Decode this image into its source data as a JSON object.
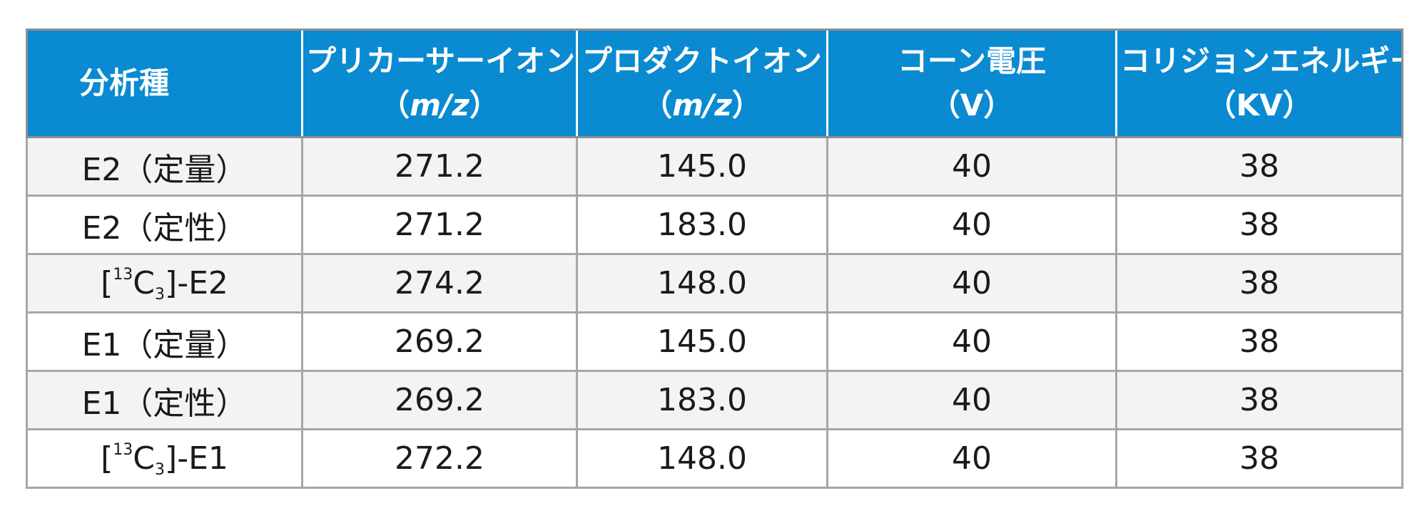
{
  "table": {
    "headers": [
      {
        "label": "分析種",
        "unit": ""
      },
      {
        "label": "プリカーサーイオン",
        "unit": "m/z"
      },
      {
        "label": "プロダクトイオン",
        "unit": "m/z"
      },
      {
        "label": "コーン電圧",
        "unit": "V"
      },
      {
        "label": "コリジョンエネルギー",
        "unit": "KV"
      }
    ],
    "rows": [
      {
        "analyte": "E2（定量）",
        "precursor": "271.2",
        "product": "145.0",
        "cone": "40",
        "collision": "38"
      },
      {
        "analyte": "E2（定性）",
        "precursor": "271.2",
        "product": "183.0",
        "cone": "40",
        "collision": "38"
      },
      {
        "analyte_parts": {
          "open": "[",
          "mass": "13",
          "element": "C",
          "count": "3",
          "close": "]-E2"
        },
        "precursor": "274.2",
        "product": "148.0",
        "cone": "40",
        "collision": "38"
      },
      {
        "analyte": "E1（定量）",
        "precursor": "269.2",
        "product": "145.0",
        "cone": "40",
        "collision": "38"
      },
      {
        "analyte": "E1（定性）",
        "precursor": "269.2",
        "product": "183.0",
        "cone": "40",
        "collision": "38"
      },
      {
        "analyte_parts": {
          "open": "[",
          "mass": "13",
          "element": "C",
          "count": "3",
          "close": "]-E1"
        },
        "precursor": "272.2",
        "product": "148.0",
        "cone": "40",
        "collision": "38"
      }
    ]
  },
  "colors": {
    "header_bg": "#0a8ad1",
    "header_text": "#ffffff",
    "row_stripe": "#f3f3f5",
    "row_plain": "#ffffff",
    "border": "#a6a6a6"
  }
}
